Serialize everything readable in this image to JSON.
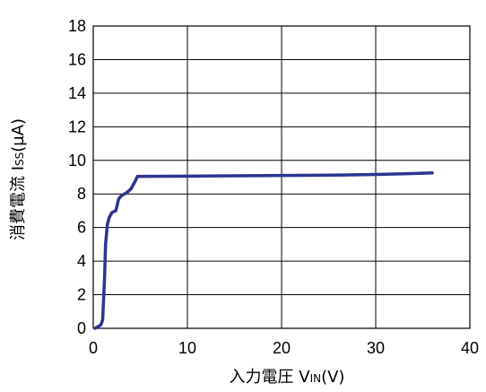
{
  "chart_data": {
    "type": "line",
    "title": "",
    "xlabel": {
      "main": "入力電圧 V",
      "sub": "IN",
      "unit": "(V)"
    },
    "ylabel": {
      "main": "消費電流 I",
      "sub": "SS",
      "unit": "(µA)"
    },
    "xlim": [
      0,
      40
    ],
    "ylim": [
      0,
      18
    ],
    "x_ticks": [
      0,
      10,
      20,
      30,
      40
    ],
    "y_ticks": [
      0,
      2,
      4,
      6,
      8,
      10,
      12,
      14,
      16,
      18
    ],
    "grid": true,
    "legend": "none",
    "series": [
      {
        "color": "#2b3590",
        "x": [
          0.2,
          0.8,
          1.0,
          1.2,
          1.3,
          1.5,
          1.7,
          2.0,
          2.4,
          2.7,
          3.0,
          3.3,
          3.6,
          4.0,
          4.4,
          4.7,
          5.0,
          10,
          15,
          20,
          25,
          30,
          33,
          36
        ],
        "y": [
          0.0,
          0.2,
          0.5,
          3.0,
          5.0,
          6.2,
          6.6,
          6.9,
          7.0,
          7.7,
          7.9,
          8.0,
          8.1,
          8.3,
          8.7,
          9.05,
          9.05,
          9.06,
          9.08,
          9.1,
          9.12,
          9.16,
          9.2,
          9.25
        ]
      }
    ]
  }
}
